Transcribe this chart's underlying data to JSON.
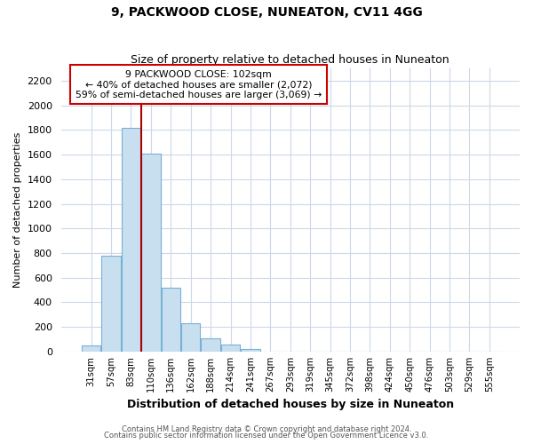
{
  "title": "9, PACKWOOD CLOSE, NUNEATON, CV11 4GG",
  "subtitle": "Size of property relative to detached houses in Nuneaton",
  "xlabel": "Distribution of detached houses by size in Nuneaton",
  "ylabel": "Number of detached properties",
  "bar_labels": [
    "31sqm",
    "57sqm",
    "83sqm",
    "110sqm",
    "136sqm",
    "162sqm",
    "188sqm",
    "214sqm",
    "241sqm",
    "267sqm",
    "293sqm",
    "319sqm",
    "345sqm",
    "372sqm",
    "398sqm",
    "424sqm",
    "450sqm",
    "476sqm",
    "503sqm",
    "529sqm",
    "555sqm"
  ],
  "bar_values": [
    50,
    775,
    1820,
    1610,
    520,
    230,
    105,
    55,
    20,
    0,
    0,
    0,
    0,
    0,
    0,
    0,
    0,
    0,
    0,
    0,
    0
  ],
  "bar_color": "#c8dff0",
  "bar_edge_color": "#7ab0d4",
  "red_line_x": 2.5,
  "marker_label": "9 PACKWOOD CLOSE: 102sqm",
  "marker_color": "#aa0000",
  "annotation_line1": "← 40% of detached houses are smaller (2,072)",
  "annotation_line2": "59% of semi-detached houses are larger (3,069) →",
  "ylim": [
    0,
    2300
  ],
  "yticks": [
    0,
    200,
    400,
    600,
    800,
    1000,
    1200,
    1400,
    1600,
    1800,
    2000,
    2200
  ],
  "footnote1": "Contains HM Land Registry data © Crown copyright and database right 2024.",
  "footnote2": "Contains public sector information licensed under the Open Government Licence v3.0.",
  "bg_color": "#ffffff",
  "grid_color": "#ccd8ea"
}
